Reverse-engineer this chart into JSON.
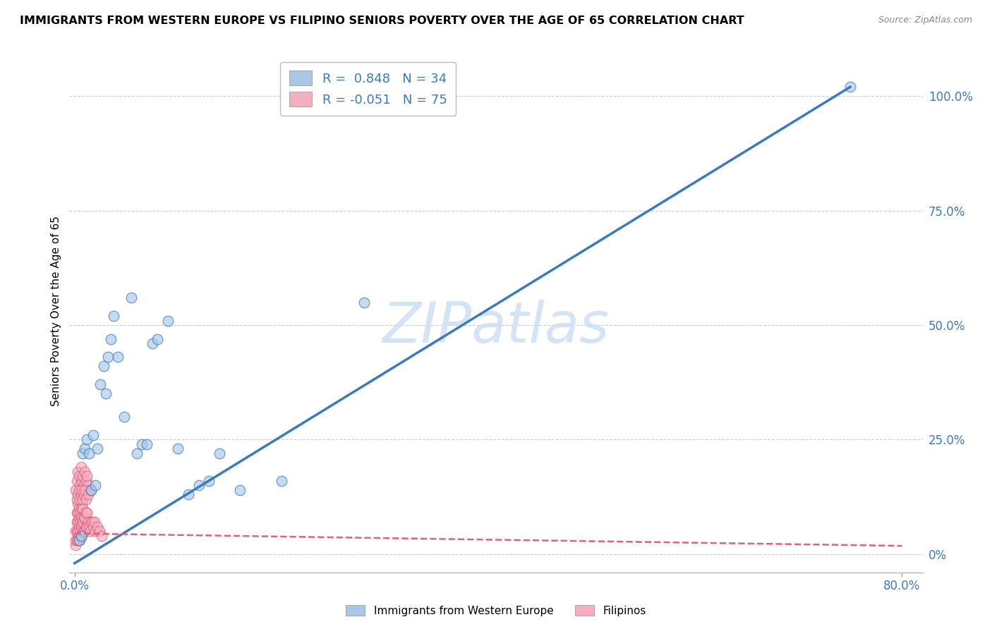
{
  "title": "IMMIGRANTS FROM WESTERN EUROPE VS FILIPINO SENIORS POVERTY OVER THE AGE OF 65 CORRELATION CHART",
  "source": "Source: ZipAtlas.com",
  "ylabel": "Seniors Poverty Over the Age of 65",
  "watermark": "ZIPatlas",
  "blue_R": 0.848,
  "blue_N": 34,
  "pink_R": -0.051,
  "pink_N": 75,
  "blue_color": "#a8c8e8",
  "pink_color": "#f4aec0",
  "blue_line_color": "#3a7abf",
  "pink_line_color": "#e06080",
  "legend_label_blue": "Immigrants from Western Europe",
  "legend_label_pink": "Filipinos",
  "blue_points_x": [
    0.004,
    0.006,
    0.008,
    0.01,
    0.012,
    0.014,
    0.016,
    0.018,
    0.02,
    0.022,
    0.025,
    0.028,
    0.03,
    0.032,
    0.035,
    0.038,
    0.042,
    0.048,
    0.055,
    0.06,
    0.065,
    0.07,
    0.075,
    0.08,
    0.09,
    0.1,
    0.11,
    0.12,
    0.13,
    0.14,
    0.16,
    0.2,
    0.28,
    0.75
  ],
  "blue_points_y": [
    0.03,
    0.04,
    0.22,
    0.23,
    0.25,
    0.22,
    0.14,
    0.26,
    0.15,
    0.23,
    0.37,
    0.41,
    0.35,
    0.43,
    0.47,
    0.52,
    0.43,
    0.3,
    0.56,
    0.22,
    0.24,
    0.24,
    0.46,
    0.47,
    0.51,
    0.23,
    0.13,
    0.15,
    0.16,
    0.22,
    0.14,
    0.16,
    0.55,
    1.02
  ],
  "pink_points_x": [
    0.001,
    0.001,
    0.001,
    0.002,
    0.002,
    0.002,
    0.002,
    0.003,
    0.003,
    0.003,
    0.003,
    0.003,
    0.004,
    0.004,
    0.004,
    0.004,
    0.005,
    0.005,
    0.005,
    0.005,
    0.006,
    0.006,
    0.006,
    0.006,
    0.007,
    0.007,
    0.007,
    0.007,
    0.008,
    0.008,
    0.008,
    0.009,
    0.009,
    0.01,
    0.01,
    0.011,
    0.011,
    0.012,
    0.012,
    0.013,
    0.014,
    0.015,
    0.016,
    0.017,
    0.018,
    0.019,
    0.02,
    0.022,
    0.024,
    0.026,
    0.001,
    0.002,
    0.003,
    0.004,
    0.005,
    0.006,
    0.007,
    0.008,
    0.009,
    0.01,
    0.011,
    0.012,
    0.013,
    0.002,
    0.003,
    0.004,
    0.005,
    0.006,
    0.007,
    0.008,
    0.009,
    0.01,
    0.011,
    0.013,
    0.016
  ],
  "pink_points_y": [
    0.02,
    0.03,
    0.05,
    0.03,
    0.05,
    0.07,
    0.09,
    0.03,
    0.05,
    0.07,
    0.09,
    0.11,
    0.04,
    0.06,
    0.08,
    0.1,
    0.03,
    0.05,
    0.07,
    0.09,
    0.04,
    0.06,
    0.08,
    0.1,
    0.04,
    0.06,
    0.08,
    0.11,
    0.05,
    0.07,
    0.1,
    0.05,
    0.08,
    0.05,
    0.08,
    0.06,
    0.09,
    0.06,
    0.09,
    0.07,
    0.06,
    0.05,
    0.07,
    0.07,
    0.06,
    0.07,
    0.05,
    0.06,
    0.05,
    0.04,
    0.14,
    0.16,
    0.18,
    0.17,
    0.15,
    0.19,
    0.16,
    0.17,
    0.15,
    0.18,
    0.16,
    0.17,
    0.15,
    0.12,
    0.13,
    0.14,
    0.12,
    0.13,
    0.14,
    0.12,
    0.13,
    0.14,
    0.12,
    0.13,
    0.14
  ],
  "ytick_labels": [
    "0%",
    "25.0%",
    "50.0%",
    "75.0%",
    "100.0%"
  ],
  "ytick_values": [
    0.0,
    0.25,
    0.5,
    0.75,
    1.0
  ],
  "blue_line_x": [
    0.0,
    0.75
  ],
  "blue_line_y": [
    -0.02,
    1.02
  ],
  "pink_line_x": [
    0.0,
    0.8
  ],
  "pink_line_y": [
    0.045,
    0.018
  ],
  "xlim": [
    -0.005,
    0.82
  ],
  "ylim": [
    -0.04,
    1.1
  ],
  "background_color": "#ffffff",
  "grid_color": "#cccccc"
}
